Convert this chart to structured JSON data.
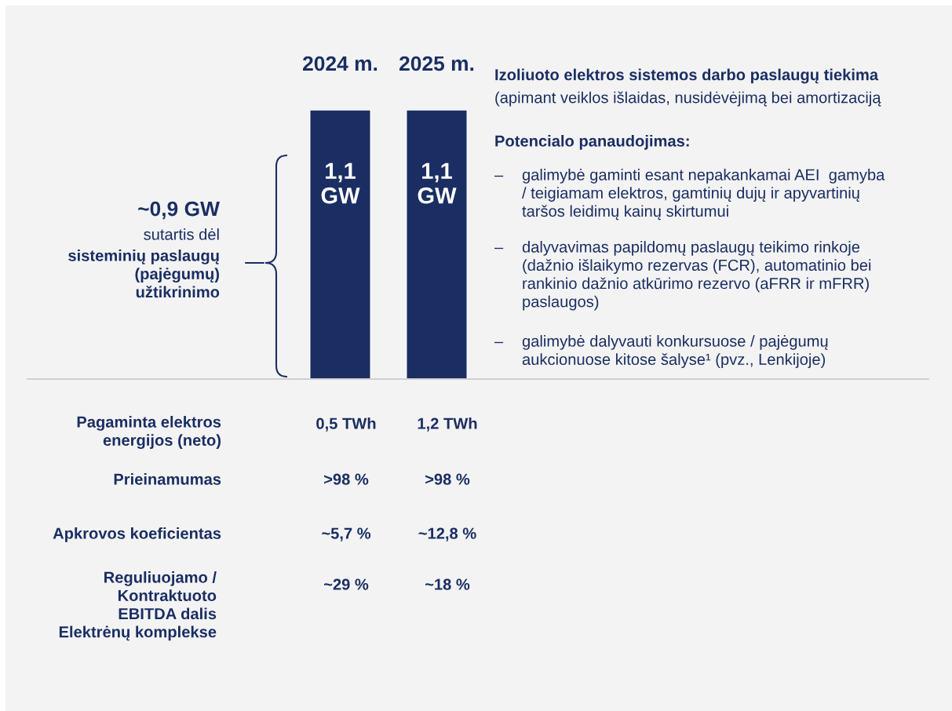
{
  "chart_data": {
    "type": "bar",
    "categories": [
      "2024 m.",
      "2025 m."
    ],
    "values": [
      1.1,
      1.1
    ],
    "value_labels": [
      "1,1\nGW",
      "1,1\nGW"
    ],
    "color": "#1a2e63",
    "tick_labels": "x",
    "title": "Izoliuoto elektros sistemos darbo paslaugų tiekima",
    "subtitle": "(apimant veiklos išlaidas, nusidėvėjimą bei amortizaciją",
    "annotations": [
      "~0,9 GW",
      "sutartis dėl",
      "sisteminių paslaugų\n(pajėgumų)\nužtikrinimo",
      "Potencialo panaudojimas:",
      "–",
      "galimybė gaminti esant nepakankamai AEI  gamyba\n/ teigiamam elektros, gamtinių dujų ir apyvartinių\ntaršos leidimų kainų skirtumui",
      "–",
      "dalyvavimas papildomų paslaugų teikimo rinkoje\n(dažnio išlaikymo rezervas (FCR), automatinio bei\nrankinio dažnio atkūrimo rezervo (aFRR ir mFRR)\npaslaugos)",
      "–",
      "galimybė dalyvauti konkursuose / pajėgumų\naukcionuose kitose šalyse¹ (pvz., Lenkijoje)",
      "Pagaminta elektros\nenergijos (neto)",
      "0,5 TWh",
      "1,2 TWh",
      "Prieinamumas",
      ">98 %",
      ">98 %",
      "Apkrovos koeficientas",
      "~5,7 %",
      "~12,8 %",
      "Reguliuojamo /\nKontraktuoto\nEBITDA dalis\nElektrėnų komplekse",
      "~29 %",
      "~18 %"
    ]
  }
}
